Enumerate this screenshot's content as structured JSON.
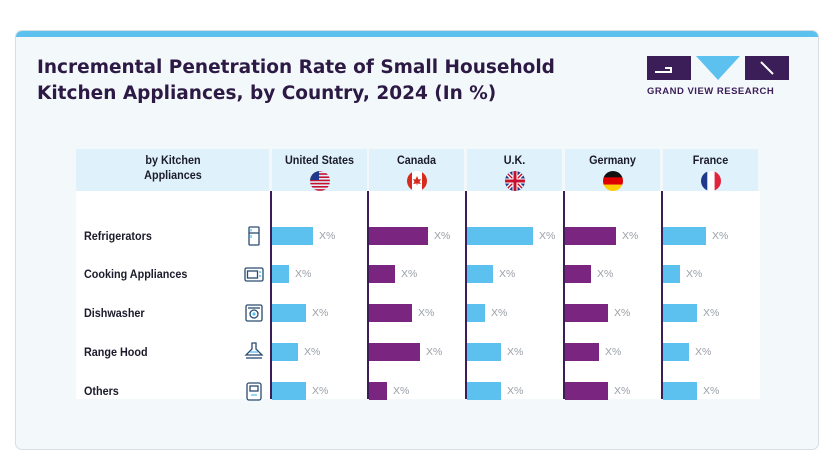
{
  "title": "Incremental Penetration Rate of Small Household Kitchen Appliances, by Country, 2024 (In %)",
  "brand": {
    "name": "GRAND VIEW RESEARCH",
    "logo_dark": "#3b1d58",
    "logo_light": "#5cc1ee"
  },
  "colors": {
    "accent_bar": "#5cc1ee",
    "bar_light": "#5cc1ee",
    "bar_dark": "#7a2580",
    "title": "#2c1a44",
    "header_bg": "#dff2fb",
    "divider": "#3b1d58"
  },
  "chart_data": {
    "type": "bar",
    "category_header": "by Kitchen Appliances",
    "categories": [
      "Refrigerators",
      "Cooking Appliances",
      "Dishwasher",
      "Range Hood",
      "Others"
    ],
    "category_icons": [
      "refrigerator-icon",
      "oven-icon",
      "dishwasher-icon",
      "range-hood-icon",
      "appliance-icon"
    ],
    "series": [
      {
        "name": "United States",
        "flag": "us-flag-icon",
        "color": "#5cc1ee",
        "values": [
          0.46,
          0.19,
          0.38,
          0.29,
          0.38
        ],
        "labels": [
          "X%",
          "X%",
          "X%",
          "X%",
          "X%"
        ]
      },
      {
        "name": "Canada",
        "flag": "canada-flag-icon",
        "color": "#7a2580",
        "values": [
          0.65,
          0.29,
          0.48,
          0.57,
          0.2
        ],
        "labels": [
          "X%",
          "X%",
          "X%",
          "X%",
          "X%"
        ]
      },
      {
        "name": "U.K.",
        "flag": "uk-flag-icon",
        "color": "#5cc1ee",
        "values": [
          0.73,
          0.29,
          0.2,
          0.38,
          0.38
        ],
        "labels": [
          "X%",
          "X%",
          "X%",
          "X%",
          "X%"
        ]
      },
      {
        "name": "Germany",
        "flag": "germany-flag-icon",
        "color": "#7a2580",
        "values": [
          0.57,
          0.29,
          0.48,
          0.38,
          0.48
        ],
        "labels": [
          "X%",
          "X%",
          "X%",
          "X%",
          "X%"
        ]
      },
      {
        "name": "France",
        "flag": "france-flag-icon",
        "color": "#5cc1ee",
        "values": [
          0.48,
          0.19,
          0.38,
          0.29,
          0.38
        ],
        "labels": [
          "X%",
          "X%",
          "X%",
          "X%",
          "X%"
        ]
      }
    ],
    "value_scale": "relative bar length (values not printed; labels read X%)"
  }
}
